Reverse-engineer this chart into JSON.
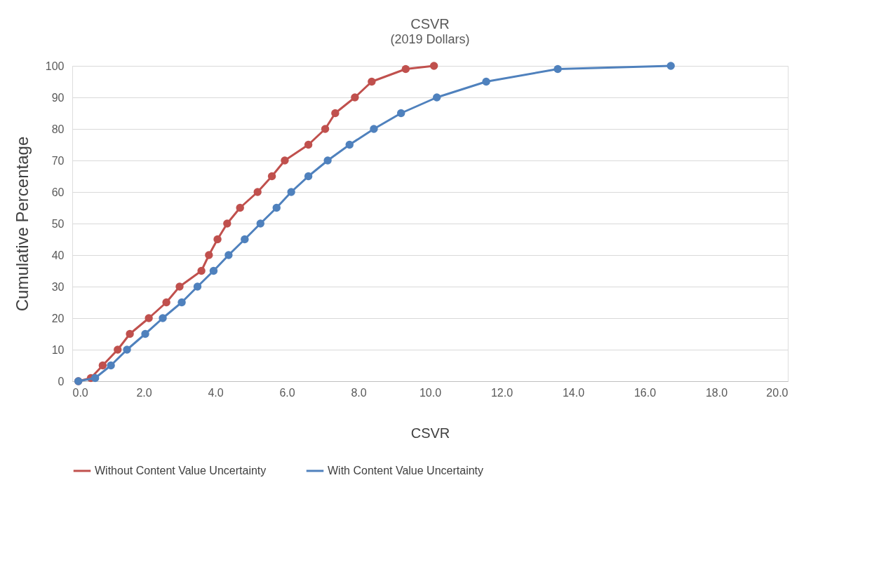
{
  "chart_data": {
    "type": "line",
    "title": "CSVR",
    "subtitle": "(2019 Dollars)",
    "xlabel": "CSVR",
    "ylabel": "Cumulative Percentage",
    "xlim": [
      0,
      20
    ],
    "xticks": [
      {
        "value": 0,
        "label": "0.0"
      },
      {
        "value": 2,
        "label": "2.0"
      },
      {
        "value": 4,
        "label": "4.0"
      },
      {
        "value": 6,
        "label": "6.0"
      },
      {
        "value": 8,
        "label": "8.0"
      },
      {
        "value": 10,
        "label": "10.0"
      },
      {
        "value": 12,
        "label": "12.0"
      },
      {
        "value": 14,
        "label": "14.0"
      },
      {
        "value": 16,
        "label": "16.0"
      },
      {
        "value": 18,
        "label": "18.0"
      },
      {
        "value": 20,
        "label": "20.0"
      }
    ],
    "ylim": [
      0,
      100
    ],
    "yticks": [
      0,
      10,
      20,
      30,
      40,
      50,
      60,
      70,
      80,
      90,
      100
    ],
    "grid": "y",
    "legend": "bottom",
    "marker": "circle",
    "line_style": "solid",
    "series": [
      {
        "name": "Without Content Value Uncertainty",
        "color": "#c0504d",
        "x": [
          0.17,
          0.52,
          0.85,
          1.27,
          1.61,
          2.14,
          2.63,
          3.0,
          3.61,
          3.82,
          4.06,
          4.33,
          4.69,
          5.18,
          5.58,
          5.94,
          6.6,
          7.07,
          7.35,
          7.9,
          8.37,
          9.32,
          10.11
        ],
        "values": [
          0,
          1,
          5,
          10,
          15,
          20,
          25,
          30,
          35,
          40,
          45,
          50,
          55,
          60,
          65,
          70,
          75,
          80,
          85,
          90,
          95,
          99,
          100
        ]
      },
      {
        "name": "With Content Value Uncertainty",
        "color": "#4f81bd",
        "x": [
          0.17,
          0.64,
          1.08,
          1.53,
          2.04,
          2.53,
          3.06,
          3.5,
          3.95,
          4.37,
          4.82,
          5.26,
          5.71,
          6.12,
          6.6,
          7.14,
          7.75,
          8.43,
          9.19,
          10.19,
          11.57,
          13.57,
          16.73
        ],
        "values": [
          0,
          1,
          5,
          10,
          15,
          20,
          25,
          30,
          35,
          40,
          45,
          50,
          55,
          60,
          65,
          70,
          75,
          80,
          85,
          90,
          95,
          99,
          100
        ]
      }
    ]
  }
}
